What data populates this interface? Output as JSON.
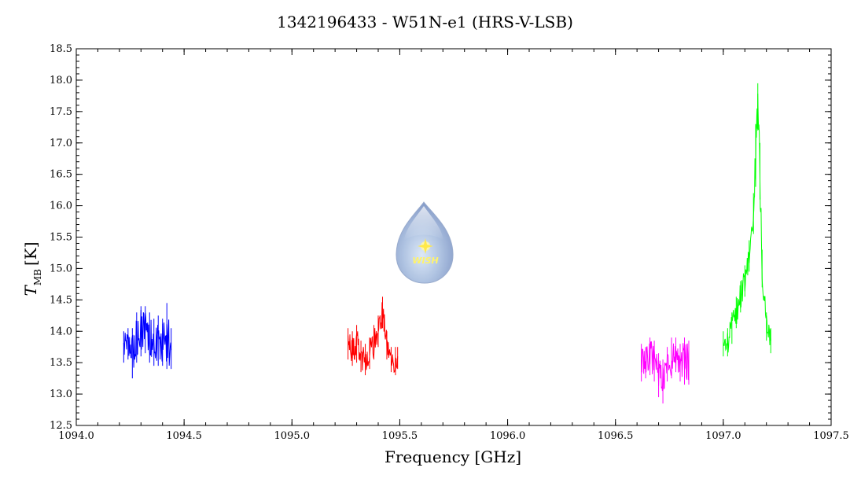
{
  "chart_data": {
    "type": "line",
    "title": "1342196433 - W51N-e1 (HRS-V-LSB)",
    "xlabel": "Frequency [GHz]",
    "ylabel_main": "T",
    "ylabel_sub": "MB",
    "ylabel_unit": "[K]",
    "xlim": [
      1094.0,
      1097.5
    ],
    "ylim": [
      12.5,
      18.5
    ],
    "xticks": [
      1094.0,
      1094.5,
      1095.0,
      1095.5,
      1096.0,
      1096.5,
      1097.0,
      1097.5
    ],
    "yticks": [
      12.5,
      13.0,
      13.5,
      14.0,
      14.5,
      15.0,
      15.5,
      16.0,
      16.5,
      17.0,
      17.5,
      18.0,
      18.5
    ],
    "xtick_labels": [
      "1094.0",
      "1094.5",
      "1095.0",
      "1095.5",
      "1096.0",
      "1096.5",
      "1097.0",
      "1097.5"
    ],
    "ytick_labels": [
      "12.5",
      "13.0",
      "13.5",
      "14.0",
      "14.5",
      "15.0",
      "15.5",
      "16.0",
      "16.5",
      "17.0",
      "17.5",
      "18.0",
      "18.5"
    ],
    "grid": false,
    "series": [
      {
        "color": "#0000ff",
        "x": [
          1094.22,
          1094.24,
          1094.26,
          1094.28,
          1094.3,
          1094.32,
          1094.34,
          1094.36,
          1094.38,
          1094.4,
          1094.42,
          1094.44
        ],
        "y": [
          13.75,
          13.8,
          13.7,
          13.9,
          14.1,
          14.15,
          13.95,
          13.85,
          13.9,
          13.85,
          13.75,
          13.7
        ],
        "low": [
          13.5,
          13.55,
          13.25,
          13.5,
          13.6,
          13.65,
          13.5,
          13.45,
          13.45,
          13.45,
          13.4,
          13.4
        ],
        "high": [
          14.0,
          14.05,
          14.05,
          14.3,
          14.4,
          14.4,
          14.3,
          14.2,
          14.25,
          14.2,
          14.45,
          14.05
        ]
      },
      {
        "color": "#ff0000",
        "x": [
          1095.26,
          1095.28,
          1095.3,
          1095.32,
          1095.34,
          1095.36,
          1095.38,
          1095.4,
          1095.42,
          1095.44,
          1095.46,
          1095.48,
          1095.49
        ],
        "y": [
          13.75,
          13.7,
          13.8,
          13.6,
          13.55,
          13.65,
          13.85,
          14.05,
          14.35,
          13.8,
          13.55,
          13.5,
          13.6
        ],
        "low": [
          13.55,
          13.45,
          13.5,
          13.35,
          13.3,
          13.4,
          13.55,
          13.75,
          14.05,
          13.55,
          13.35,
          13.3,
          13.4
        ],
        "high": [
          14.05,
          14.0,
          14.1,
          13.85,
          13.8,
          13.9,
          14.1,
          14.25,
          14.55,
          14.0,
          13.75,
          13.75,
          13.75
        ]
      },
      {
        "color": "#ff00ff",
        "x": [
          1096.62,
          1096.64,
          1096.66,
          1096.68,
          1096.7,
          1096.72,
          1096.74,
          1096.76,
          1096.78,
          1096.8,
          1096.82,
          1096.84
        ],
        "y": [
          13.5,
          13.55,
          13.65,
          13.55,
          13.3,
          13.15,
          13.45,
          13.55,
          13.65,
          13.5,
          13.55,
          13.55
        ],
        "low": [
          13.2,
          13.25,
          13.3,
          13.2,
          12.95,
          12.85,
          13.2,
          13.25,
          13.35,
          13.2,
          13.15,
          13.15
        ],
        "high": [
          13.8,
          13.75,
          13.9,
          13.85,
          13.65,
          13.55,
          13.75,
          13.9,
          13.9,
          13.8,
          13.9,
          13.85
        ]
      },
      {
        "color": "#00ff00",
        "x": [
          1097.0,
          1097.02,
          1097.04,
          1097.06,
          1097.08,
          1097.1,
          1097.12,
          1097.14,
          1097.15,
          1097.16,
          1097.17,
          1097.18,
          1097.2,
          1097.22
        ],
        "y": [
          13.75,
          13.85,
          14.05,
          14.3,
          14.55,
          14.8,
          15.2,
          15.9,
          16.8,
          17.8,
          16.6,
          15.0,
          14.1,
          13.85
        ],
        "low": [
          13.6,
          13.6,
          13.8,
          14.05,
          14.3,
          14.55,
          14.95,
          15.55,
          16.3,
          17.2,
          16.1,
          14.7,
          13.85,
          13.65
        ],
        "high": [
          14.0,
          14.05,
          14.3,
          14.55,
          14.8,
          15.05,
          15.45,
          16.2,
          17.3,
          17.95,
          17.0,
          15.3,
          14.3,
          14.05
        ]
      }
    ],
    "logo_text": "WISH"
  }
}
